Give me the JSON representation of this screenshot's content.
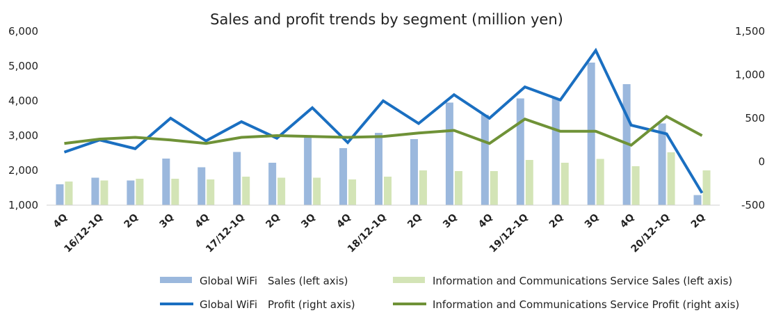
{
  "chart_data": {
    "type": "bar+line",
    "title": "Sales and profit trends by segment (million yen)",
    "categories": [
      "4Q",
      "16/12-1Q",
      "2Q",
      "3Q",
      "4Q",
      "17/12-1Q",
      "2Q",
      "3Q",
      "4Q",
      "18/12-1Q",
      "2Q",
      "3Q",
      "4Q",
      "19/12-1Q",
      "2Q",
      "3Q",
      "4Q",
      "20/12-1Q",
      "2Q"
    ],
    "left_axis": {
      "min": 1000,
      "max": 6000,
      "ticks": [
        "1,000",
        "2,000",
        "3,000",
        "4,000",
        "5,000",
        "6,000"
      ]
    },
    "right_axis": {
      "min": -500,
      "max": 1500,
      "ticks": [
        "-500",
        "0",
        "500",
        "1,000",
        "1,500"
      ],
      "tick_color": "#d9302c"
    },
    "series": [
      {
        "name": "Global WiFi　Sales (left axis)",
        "kind": "bar",
        "axis": "left",
        "color": "#9bb8dd",
        "values": [
          1600,
          1790,
          1710,
          2340,
          2090,
          2530,
          2220,
          3000,
          2640,
          3080,
          2900,
          3950,
          3600,
          4070,
          4070,
          5100,
          4480,
          3350,
          1290
        ]
      },
      {
        "name": "Information and Communications Service Sales (left axis)",
        "kind": "bar",
        "axis": "left",
        "color": "#d3e4b6",
        "values": [
          1680,
          1710,
          1760,
          1760,
          1740,
          1820,
          1790,
          1790,
          1740,
          1820,
          2000,
          1980,
          1980,
          2300,
          2220,
          2330,
          2120,
          2520,
          2000
        ]
      },
      {
        "name": "Global WiFi　Profit (right axis)",
        "kind": "line",
        "axis": "right",
        "color": "#1a6fc1",
        "values": [
          110,
          250,
          150,
          500,
          240,
          460,
          270,
          620,
          220,
          700,
          440,
          770,
          500,
          860,
          710,
          1280,
          420,
          320,
          -360
        ]
      },
      {
        "name": "Information and Communications Service Profit (right axis)",
        "kind": "line",
        "axis": "right",
        "color": "#6f9237",
        "values": [
          210,
          260,
          280,
          250,
          210,
          280,
          300,
          290,
          280,
          290,
          330,
          360,
          210,
          490,
          350,
          350,
          190,
          520,
          300
        ]
      }
    ],
    "legend_position": "bottom",
    "grid": false
  }
}
